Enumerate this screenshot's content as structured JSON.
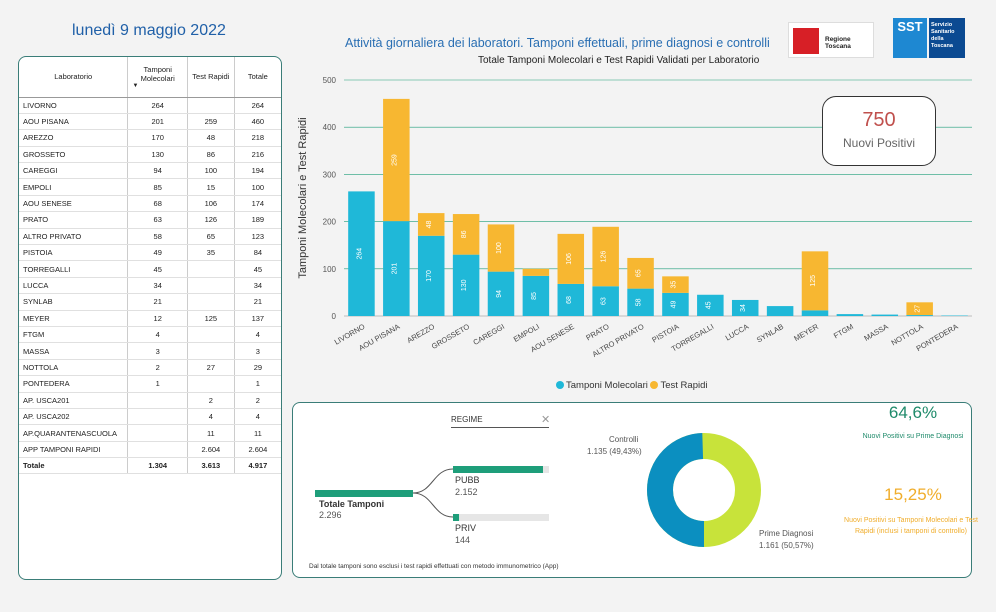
{
  "header": {
    "date": "lunedì 9 maggio 2022",
    "subtitle": "Attività giornaliera dei laboratori. Tamponi effettuali, prime diagnosi e controlli",
    "logo_regione": "Regione Toscana",
    "logo_sst_short": "SST",
    "logo_sst_text": "Servizio Sanitario della Toscana"
  },
  "table": {
    "headers": [
      "Laboratorio",
      "Tamponi Molecolari",
      "Test Rapidi",
      "Totale"
    ],
    "rows": [
      [
        "LIVORNO",
        "264",
        "",
        "264"
      ],
      [
        "AOU PISANA",
        "201",
        "259",
        "460"
      ],
      [
        "AREZZO",
        "170",
        "48",
        "218"
      ],
      [
        "GROSSETO",
        "130",
        "86",
        "216"
      ],
      [
        "CAREGGI",
        "94",
        "100",
        "194"
      ],
      [
        "EMPOLI",
        "85",
        "15",
        "100"
      ],
      [
        "AOU SENESE",
        "68",
        "106",
        "174"
      ],
      [
        "PRATO",
        "63",
        "126",
        "189"
      ],
      [
        "ALTRO PRIVATO",
        "58",
        "65",
        "123"
      ],
      [
        "PISTOIA",
        "49",
        "35",
        "84"
      ],
      [
        "TORREGALLI",
        "45",
        "",
        "45"
      ],
      [
        "LUCCA",
        "34",
        "",
        "34"
      ],
      [
        "SYNLAB",
        "21",
        "",
        "21"
      ],
      [
        "MEYER",
        "12",
        "125",
        "137"
      ],
      [
        "FTGM",
        "4",
        "",
        "4"
      ],
      [
        "MASSA",
        "3",
        "",
        "3"
      ],
      [
        "NOTTOLA",
        "2",
        "27",
        "29"
      ],
      [
        "PONTEDERA",
        "1",
        "",
        "1"
      ],
      [
        "AP. USCA201",
        "",
        "2",
        "2"
      ],
      [
        "AP. USCA202",
        "",
        "4",
        "4"
      ],
      [
        "AP.QUARANTENASCUOLA",
        "",
        "11",
        "11"
      ],
      [
        "APP TAMPONI RAPIDI",
        "",
        "2.604",
        "2.604"
      ]
    ],
    "total": [
      "Totale",
      "1.304",
      "3.613",
      "4.917"
    ]
  },
  "chart_data": {
    "type": "bar",
    "title": "Totale Tamponi Molecolari e Test Rapidi Validati per Laboratorio",
    "ylabel": "Tamponi Molecolari e Test Rapidi",
    "ylim": [
      0,
      500
    ],
    "yticks": [
      0,
      100,
      200,
      300,
      400,
      500
    ],
    "grid": true,
    "stacked": true,
    "legend_position": "bottom",
    "categories": [
      "LIVORNO",
      "AOU PISANA",
      "AREZZO",
      "GROSSETO",
      "CAREGGI",
      "EMPOLI",
      "AOU SENESE",
      "PRATO",
      "ALTRO PRIVATO",
      "PISTOIA",
      "TORREGALLI",
      "LUCCA",
      "SYNLAB",
      "MEYER",
      "FTGM",
      "MASSA",
      "NOTTOLA",
      "PONTEDERA"
    ],
    "series": [
      {
        "name": "Tamponi Molecolari",
        "color": "#1fb8d8",
        "values": [
          264,
          201,
          170,
          130,
          94,
          85,
          68,
          63,
          58,
          49,
          45,
          34,
          21,
          12,
          4,
          3,
          2,
          1
        ]
      },
      {
        "name": "Test Rapidi",
        "color": "#f7b731",
        "values": [
          0,
          259,
          48,
          86,
          100,
          15,
          106,
          126,
          65,
          35,
          0,
          0,
          0,
          125,
          0,
          0,
          27,
          0
        ]
      }
    ]
  },
  "positives": {
    "value": "750",
    "label": "Nuovi Positivi"
  },
  "regime": {
    "label": "REGIME",
    "total_label": "Totale Tamponi",
    "total_value": "2.296",
    "pubb_label": "PUBB",
    "pubb_value": "2.152",
    "priv_label": "PRIV",
    "priv_value": "144",
    "footnote": "Dal totale tamponi sono esclusi i test rapidi effettuati con metodo immunometrico (App)"
  },
  "donut": {
    "controlli_label": "Controlli",
    "controlli_value": "1.135 (49,43%)",
    "controlli_fraction": 0.4943,
    "controlli_color": "#0b8fc0",
    "prime_label": "Prime Diagnosi",
    "prime_value": "1.161 (50,57%)",
    "prime_color": "#c8e33a"
  },
  "kpis": {
    "pct1": "64,6%",
    "pct1_label": "Nuovi Positivi su Prime Diagnosi",
    "pct2": "15,25%",
    "pct2_label": "Nuovi Positivi su Tamponi Molecolari e Test Rapidi (inclusi i tamponi di controllo)"
  }
}
